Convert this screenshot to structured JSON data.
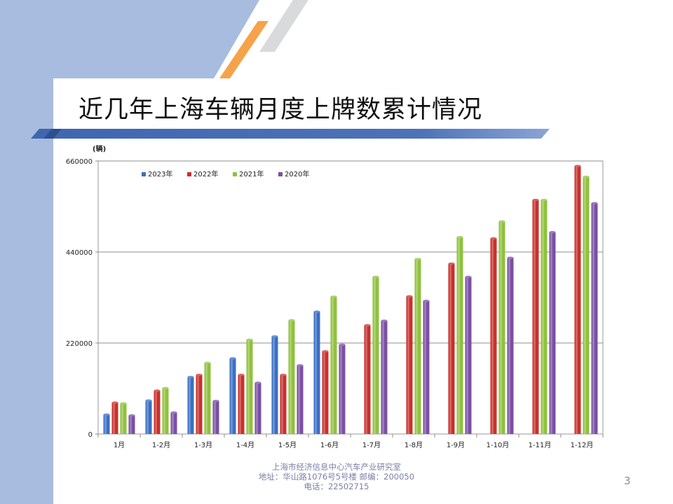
{
  "slide": {
    "title": "近几年上海车辆月度上牌数累计情况",
    "footer": {
      "line1": "上海市经济信息中心汽车产业研究室",
      "line2": "地址：华山路1076号5号楼    邮编：200050",
      "line3": "电话：22502715"
    },
    "page_number": "3"
  },
  "chart_data": {
    "type": "bar",
    "title": "",
    "xlabel": "",
    "ylabel": "(辆)",
    "ylim": [
      0,
      660000
    ],
    "yticks": [
      "0",
      "220000",
      "440000",
      "660000"
    ],
    "grid": true,
    "legend_position": "top-left",
    "categories": [
      "1月",
      "1-2月",
      "1-3月",
      "1-4月",
      "1-5月",
      "1-6月",
      "1-7月",
      "1-8月",
      "1-9月",
      "1-10月",
      "1-11月",
      "1-12月"
    ],
    "series": [
      {
        "name": "2023年",
        "color": "#3a6fc4",
        "values": [
          47000,
          81000,
          138000,
          183000,
          236000,
          296000,
          null,
          null,
          null,
          null,
          null,
          null
        ]
      },
      {
        "name": "2022年",
        "color": "#c9302c",
        "values": [
          76000,
          105000,
          143000,
          143000,
          143000,
          200000,
          263000,
          333000,
          412000,
          473000,
          566000,
          648000
        ]
      },
      {
        "name": "2021年",
        "color": "#8fc13e",
        "values": [
          74000,
          111000,
          172000,
          228000,
          275000,
          332000,
          380000,
          423000,
          476000,
          514000,
          566000,
          622000
        ]
      },
      {
        "name": "2020年",
        "color": "#7a4fa3",
        "values": [
          45000,
          52000,
          80000,
          124000,
          166000,
          216000,
          274000,
          322000,
          380000,
          426000,
          488000,
          558000
        ]
      }
    ]
  }
}
